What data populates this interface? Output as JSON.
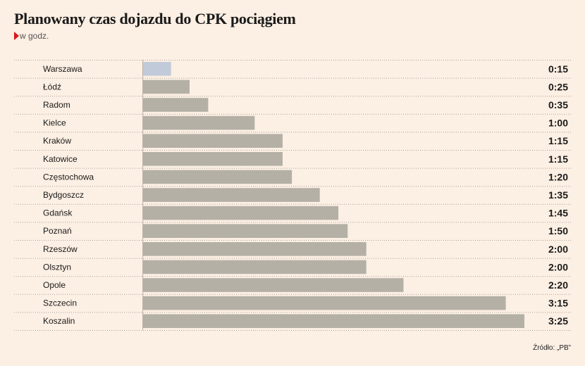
{
  "chart_data": {
    "type": "bar",
    "orientation": "horizontal",
    "title": "Planowany czas dojazdu do CPK pociągiem",
    "subtitle": "w godz.",
    "categories": [
      "Warszawa",
      "Łódź",
      "Radom",
      "Kielce",
      "Kraków",
      "Katowice",
      "Częstochowa",
      "Bydgoszcz",
      "Gdańsk",
      "Poznań",
      "Rzeszów",
      "Olsztyn",
      "Opole",
      "Szczecin",
      "Koszalin"
    ],
    "value_labels": [
      "0:15",
      "0:25",
      "0:35",
      "1:00",
      "1:15",
      "1:15",
      "1:20",
      "1:35",
      "1:45",
      "1:50",
      "2:00",
      "2:00",
      "2:20",
      "3:15",
      "3:25"
    ],
    "values_minutes": [
      15,
      25,
      35,
      60,
      75,
      75,
      80,
      95,
      105,
      110,
      120,
      120,
      140,
      195,
      205
    ],
    "highlight_index": 0,
    "colors": {
      "default": "#b4b0a6",
      "highlight": "#c1cad9",
      "background": "#fcefe3",
      "marker": "#d7191c"
    },
    "grid": false,
    "source": "Źródło: „PB”"
  }
}
